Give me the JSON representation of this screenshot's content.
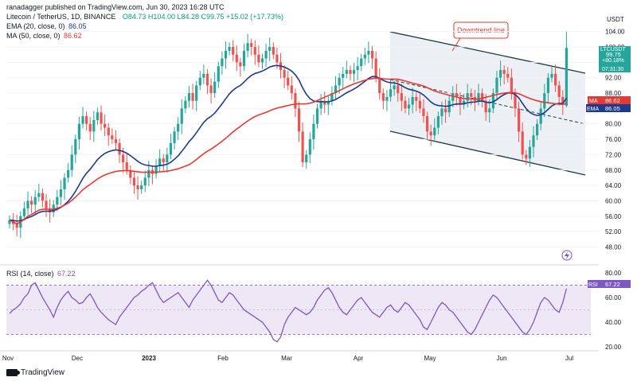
{
  "header": {
    "author_line": "ranadagger published on TradingView.com, Jun 30, 2023 16:28 UTC",
    "currency": "USDT",
    "logo_text": "TradingView"
  },
  "legend": {
    "title": "Litecoin / TetherUS, 1D, BINANCE",
    "ohlc": "O84.73 H104.00 L84.28 C99.75 +15.02 (+17.73%)",
    "ema_label": "EMA (20, close, 0)",
    "ema_value": "86.05",
    "ma_label": "MA (50, close, 0)",
    "ma_value": "86.62",
    "rsi_label": "RSI (14, close)",
    "rsi_value": "67.22"
  },
  "colors": {
    "up": "#26a69a",
    "down": "#ef5350",
    "ema": "#1e3a8a",
    "ma": "#e53935",
    "rsi": "#7e57c2",
    "channel_fill": "#eceff3",
    "rsi_band": "#ede7f6",
    "price_label": "#26a69a"
  },
  "price_tags": {
    "ticker": "LTCUSDT",
    "price": "99.75",
    "change": "+80.18%",
    "countdown": "07:31:30",
    "ma_tag": "MA",
    "ma_value": "86.62",
    "ema_tag": "EMA",
    "ema_value": "86.05",
    "rsi_tag": "RSI",
    "rsi_value": "67.22"
  },
  "annotation": {
    "text": "Downtrend line"
  },
  "chart_data": [
    {
      "type": "candlestick",
      "title": "Litecoin / TetherUS, 1D, BINANCE",
      "x_ticks": [
        "Nov",
        "Dec",
        "2023",
        "Feb",
        "Mar",
        "Apr",
        "May",
        "Jun",
        "Jul"
      ],
      "y_ticks": [
        48.0,
        52.0,
        56.0,
        60.0,
        64.0,
        68.0,
        72.0,
        76.0,
        80.0,
        84.0,
        88.0,
        92.0,
        96.0,
        100.0,
        104.0
      ],
      "ylim": [
        45,
        106
      ],
      "last": {
        "open": 84.73,
        "high": 104.0,
        "low": 84.28,
        "close": 99.75,
        "change": 15.02,
        "change_pct": 17.73
      },
      "series": [
        {
          "name": "EMA (20, close, 0)",
          "last_value": 86.05
        },
        {
          "name": "MA (50, close, 0)",
          "last_value": 86.62
        }
      ],
      "annotations": [
        "Downtrend line"
      ],
      "close_path": [
        55,
        54,
        53,
        56,
        58,
        60,
        59,
        61,
        62,
        60,
        58,
        57,
        59,
        61,
        63,
        66,
        68,
        72,
        76,
        80,
        82,
        80,
        78,
        81,
        83,
        80,
        79,
        77,
        76,
        75,
        72,
        70,
        68,
        66,
        64,
        63,
        64,
        66,
        68,
        67,
        69,
        71,
        70,
        72,
        75,
        78,
        80,
        84,
        86,
        88,
        86,
        90,
        92,
        93,
        90,
        88,
        91,
        95,
        97,
        99,
        100,
        98,
        96,
        95,
        99,
        101,
        100,
        98,
        96,
        97,
        99,
        100,
        98,
        96,
        94,
        92,
        90,
        88,
        84,
        78,
        70,
        72,
        76,
        80,
        84,
        86,
        85,
        86,
        88,
        90,
        92,
        93,
        94,
        93,
        94,
        95,
        97,
        98,
        99,
        97,
        92,
        88,
        86,
        87,
        89,
        90,
        88,
        86,
        84,
        85,
        87,
        86,
        84,
        82,
        78,
        77,
        79,
        82,
        84,
        83,
        86,
        88,
        87,
        85,
        86,
        88,
        87,
        86,
        88,
        86,
        83,
        84,
        88,
        92,
        94,
        93,
        92,
        88,
        84,
        78,
        72,
        71,
        74,
        77,
        80,
        84,
        88,
        92,
        93,
        90,
        87,
        85,
        99.75
      ],
      "candle_count": 153
    },
    {
      "type": "line",
      "title": "RSI (14, close)",
      "series": [
        {
          "name": "RSI (14, close)",
          "last_value": 67.22
        }
      ],
      "y_ticks": [
        20.0,
        40.0,
        60.0,
        80.0
      ],
      "ylim": [
        20,
        82
      ],
      "bands": [
        30,
        70
      ],
      "rsi_path": [
        47,
        50,
        52,
        55,
        60,
        63,
        70,
        72,
        66,
        60,
        55,
        50,
        44,
        52,
        58,
        62,
        65,
        60,
        58,
        55,
        56,
        60,
        63,
        58,
        52,
        48,
        45,
        42,
        40,
        38,
        44,
        48,
        52,
        56,
        60,
        62,
        65,
        67,
        70,
        72,
        66,
        60,
        56,
        58,
        60,
        62,
        64,
        60,
        56,
        52,
        58,
        62,
        66,
        70,
        74,
        70,
        64,
        58,
        56,
        60,
        64,
        62,
        58,
        54,
        50,
        48,
        46,
        44,
        42,
        40,
        36,
        32,
        26,
        24,
        28,
        38,
        44,
        48,
        52,
        50,
        48,
        46,
        48,
        52,
        58,
        62,
        66,
        68,
        64,
        58,
        52,
        48,
        46,
        50,
        54,
        58,
        60,
        56,
        52,
        48,
        46,
        44,
        48,
        52,
        54,
        50,
        48,
        52,
        56,
        54,
        50,
        46,
        42,
        36,
        34,
        40,
        46,
        52,
        56,
        54,
        50,
        48,
        44,
        40,
        36,
        32,
        30,
        34,
        40,
        46,
        52,
        58,
        62,
        60,
        56,
        52,
        48,
        44,
        40,
        36,
        32,
        30,
        34,
        40,
        48,
        56,
        60,
        58,
        54,
        50,
        48,
        56,
        67.22
      ]
    }
  ]
}
